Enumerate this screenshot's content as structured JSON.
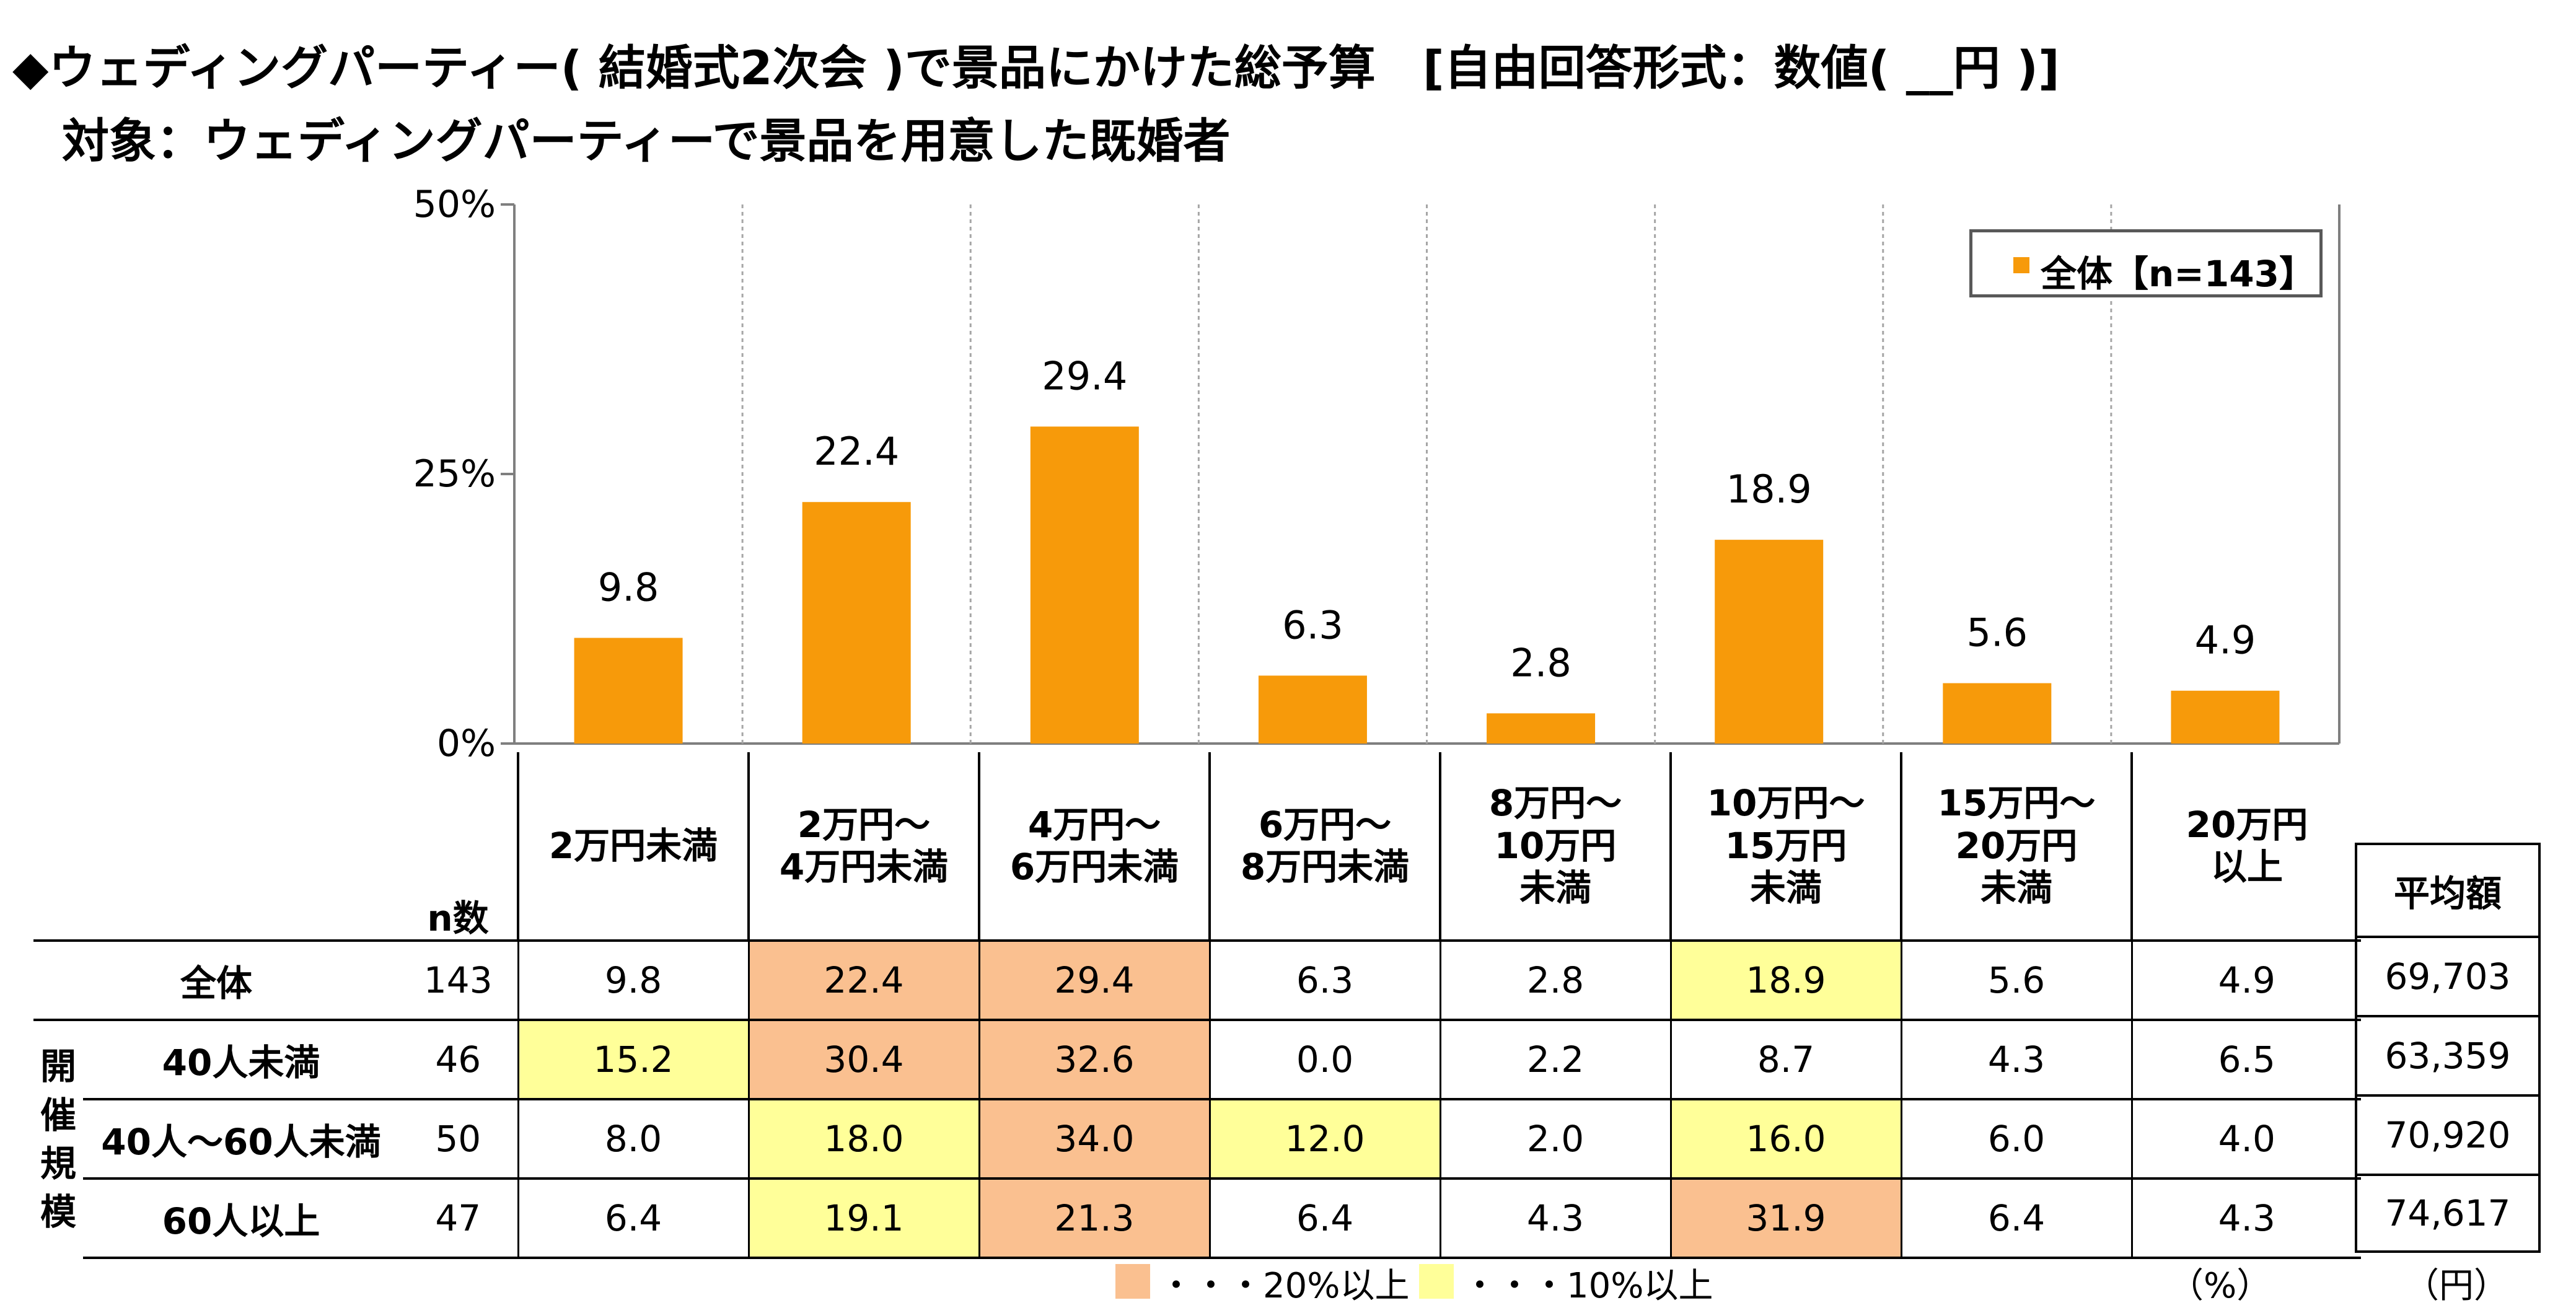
{
  "title_line1": "◆ウェディングパーティー( 結婚式2次会 )で景品にかけた総予算　[自由回答形式：数値( __円 )]",
  "title_line2": "対象：ウェディングパーティーで景品を用意した既婚者",
  "colors": {
    "bar": "#f79a0a",
    "highlight_20": "#fac090",
    "highlight_10": "#ffff99"
  },
  "chart_data": {
    "type": "bar",
    "categories": [
      "2万円未満",
      "2万円～4万円未満",
      "4万円～6万円未満",
      "6万円～8万円未満",
      "8万円～10万円未満",
      "10万円～15万円未満",
      "15万円～20万円未満",
      "20万円以上"
    ],
    "series": [
      {
        "name": "全体【n=143】",
        "values": [
          9.8,
          22.4,
          29.4,
          6.3,
          2.8,
          18.9,
          5.6,
          4.9
        ]
      }
    ],
    "yticks": [
      "0%",
      "25%",
      "50%"
    ],
    "ylim": [
      0,
      50
    ],
    "legend_position": "top-right",
    "grid": "vertical dotted"
  },
  "table": {
    "header_labels": [
      [
        "2万円未満"
      ],
      [
        "2万円～",
        "4万円未満"
      ],
      [
        "4万円～",
        "6万円未満"
      ],
      [
        "6万円～",
        "8万円未満"
      ],
      [
        "8万円～",
        "10万円",
        "未満"
      ],
      [
        "10万円～",
        "15万円",
        "未満"
      ],
      [
        "15万円～",
        "20万円",
        "未満"
      ],
      [
        "20万円",
        "以上"
      ]
    ],
    "n_header": "n数",
    "group_label": [
      "開",
      "催",
      "規",
      "模"
    ],
    "rows": [
      {
        "label": "全体",
        "n": "143",
        "values": [
          "9.8",
          "22.4",
          "29.4",
          "6.3",
          "2.8",
          "18.9",
          "5.6",
          "4.9"
        ],
        "highlight": [
          "",
          "orange",
          "orange",
          "",
          "",
          "yellow",
          "",
          ""
        ],
        "avg": "69,703"
      },
      {
        "label": "40人未満",
        "n": "46",
        "values": [
          "15.2",
          "30.4",
          "32.6",
          "0.0",
          "2.2",
          "8.7",
          "4.3",
          "6.5"
        ],
        "highlight": [
          "yellow",
          "orange",
          "orange",
          "",
          "",
          "",
          "",
          ""
        ],
        "avg": "63,359"
      },
      {
        "label": "40人～60人未満",
        "n": "50",
        "values": [
          "8.0",
          "18.0",
          "34.0",
          "12.0",
          "2.0",
          "16.0",
          "6.0",
          "4.0"
        ],
        "highlight": [
          "",
          "yellow",
          "orange",
          "yellow",
          "",
          "yellow",
          "",
          ""
        ],
        "avg": "70,920"
      },
      {
        "label": "60人以上",
        "n": "47",
        "values": [
          "6.4",
          "19.1",
          "21.3",
          "6.4",
          "4.3",
          "31.9",
          "6.4",
          "4.3"
        ],
        "highlight": [
          "",
          "yellow",
          "orange",
          "",
          "",
          "orange",
          "",
          ""
        ],
        "avg": "74,617"
      }
    ]
  },
  "avg_header": "平均額",
  "footer": {
    "legend_20": "・・・20%以上",
    "legend_10": "・・・10%以上",
    "unit_percent": "（%）",
    "unit_yen": "（円）"
  }
}
